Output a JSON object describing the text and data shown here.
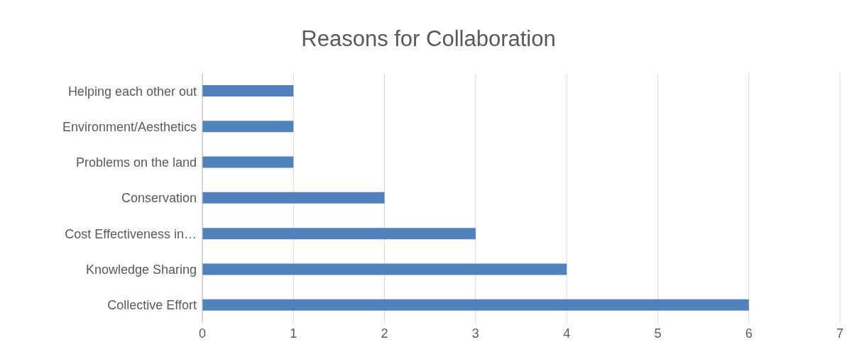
{
  "chart_data": {
    "type": "bar",
    "orientation": "horizontal",
    "title": "Reasons for Collaboration",
    "categories": [
      "Helping each other out",
      "Environment/Aesthetics",
      "Problems on the land",
      "Conservation",
      "Cost Effectiveness in…",
      "Knowledge Sharing",
      "Collective Effort"
    ],
    "values": [
      1,
      1,
      1,
      2,
      3,
      4,
      6
    ],
    "color": "#4f81bd",
    "xlim": [
      0,
      7
    ],
    "xticks": [
      0,
      1,
      2,
      3,
      4,
      5,
      6,
      7
    ],
    "grid": "x"
  }
}
